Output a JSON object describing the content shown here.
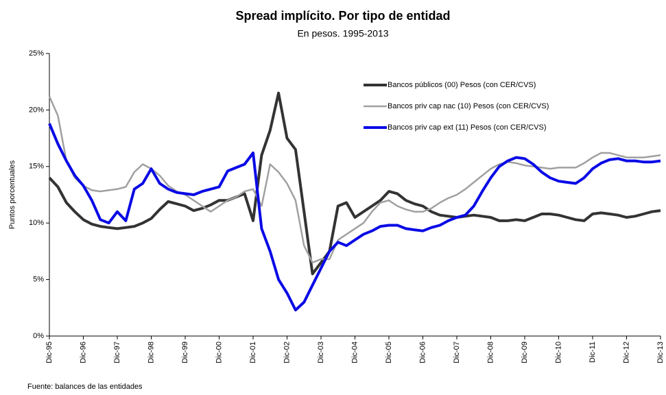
{
  "chart_data": {
    "type": "line",
    "title": "Spread implícito. Por tipo de entidad",
    "subtitle": "En pesos. 1995-2013",
    "y_label": "Puntos porcentuales",
    "source": "Fuente: balances de las entidades",
    "categories": [
      "Dic-95",
      null,
      null,
      null,
      "Dic-96",
      null,
      null,
      null,
      "Dic-97",
      null,
      null,
      null,
      "Dic-98",
      null,
      null,
      null,
      "Dic-99",
      null,
      null,
      null,
      "Dic-00",
      null,
      null,
      null,
      "Dic-01",
      null,
      null,
      null,
      "Dic-02",
      null,
      null,
      null,
      "Dic-03",
      null,
      null,
      null,
      "Dic-04",
      null,
      null,
      null,
      "Dic-05",
      null,
      null,
      null,
      "Dic-06",
      null,
      null,
      null,
      "Dic-07",
      null,
      null,
      null,
      "Dic-08",
      null,
      null,
      null,
      "Dic-09",
      null,
      null,
      null,
      "Dic-10",
      null,
      null,
      null,
      "Dic-11",
      null,
      null,
      null,
      "Dic-12",
      null,
      null,
      null,
      "Dic-13"
    ],
    "series": [
      {
        "name": "Bancos públicos (00) Pesos (con CER/CVS)",
        "color": "#333333",
        "width": 4,
        "values": [
          14.0,
          13.2,
          11.8,
          11.0,
          10.3,
          9.9,
          9.7,
          9.6,
          9.5,
          9.6,
          9.7,
          10.0,
          10.4,
          11.2,
          11.9,
          11.7,
          11.5,
          11.1,
          11.3,
          11.6,
          12.0,
          12.0,
          12.3,
          12.6,
          10.2,
          16.0,
          18.2,
          21.5,
          17.5,
          16.5,
          11.0,
          5.5,
          6.5,
          7.5,
          11.5,
          11.8,
          10.5,
          11.0,
          11.5,
          12.0,
          12.8,
          12.6,
          12.0,
          11.7,
          11.5,
          11.0,
          10.7,
          10.6,
          10.5,
          10.6,
          10.7,
          10.6,
          10.5,
          10.2,
          10.2,
          10.3,
          10.2,
          10.5,
          10.8,
          10.8,
          10.7,
          10.5,
          10.3,
          10.2,
          10.8,
          10.9,
          10.8,
          10.7,
          10.5,
          10.6,
          10.8,
          11.0,
          11.1
        ]
      },
      {
        "name": "Bancos priv cap nac (10) Pesos (con CER/CVS)",
        "color": "#a0a0a0",
        "width": 2.5,
        "values": [
          21.2,
          19.5,
          15.5,
          14.0,
          13.3,
          12.9,
          12.8,
          12.9,
          13.0,
          13.2,
          14.5,
          15.2,
          14.8,
          14.2,
          13.3,
          12.8,
          12.5,
          12.0,
          11.5,
          11.0,
          11.5,
          12.0,
          12.3,
          12.8,
          13.0,
          11.5,
          15.2,
          14.5,
          13.5,
          12.0,
          8.0,
          6.5,
          6.8,
          6.8,
          8.5,
          9.0,
          9.5,
          10.0,
          11.0,
          11.8,
          12.0,
          11.5,
          11.2,
          11.0,
          11.0,
          11.3,
          11.8,
          12.2,
          12.5,
          13.0,
          13.6,
          14.2,
          14.8,
          15.2,
          15.4,
          15.3,
          15.1,
          15.0,
          14.9,
          14.8,
          14.9,
          14.9,
          14.9,
          15.3,
          15.8,
          16.2,
          16.2,
          16.0,
          15.8,
          15.8,
          15.8,
          15.9,
          16.0
        ]
      },
      {
        "name": "Bancos priv cap ext (11) Pesos (con CER/CVS)",
        "color": "#0a0ae6",
        "width": 4,
        "values": [
          18.8,
          17.0,
          15.5,
          14.2,
          13.3,
          12.0,
          10.3,
          10.0,
          11.0,
          10.2,
          13.0,
          13.5,
          14.8,
          13.5,
          13.0,
          12.7,
          12.6,
          12.5,
          12.8,
          13.0,
          13.2,
          14.6,
          14.9,
          15.2,
          16.2,
          9.5,
          7.5,
          5.0,
          3.8,
          2.3,
          3.0,
          4.5,
          6.0,
          7.5,
          8.3,
          8.0,
          8.5,
          9.0,
          9.3,
          9.7,
          9.8,
          9.8,
          9.5,
          9.4,
          9.3,
          9.6,
          9.8,
          10.2,
          10.5,
          10.7,
          11.5,
          12.8,
          14.0,
          15.0,
          15.5,
          15.8,
          15.7,
          15.2,
          14.5,
          14.0,
          13.7,
          13.6,
          13.5,
          14.0,
          14.8,
          15.3,
          15.6,
          15.7,
          15.5,
          15.5,
          15.4,
          15.4,
          15.5
        ]
      }
    ],
    "ylim": [
      0,
      25
    ],
    "yticks": [
      {
        "value": 0,
        "label": "0%"
      },
      {
        "value": 5,
        "label": "5%"
      },
      {
        "value": 10,
        "label": "10%"
      },
      {
        "value": 15,
        "label": "15%"
      },
      {
        "value": 20,
        "label": "20%"
      },
      {
        "value": 25,
        "label": "25%"
      }
    ],
    "legend": "top-right",
    "grid": false
  }
}
